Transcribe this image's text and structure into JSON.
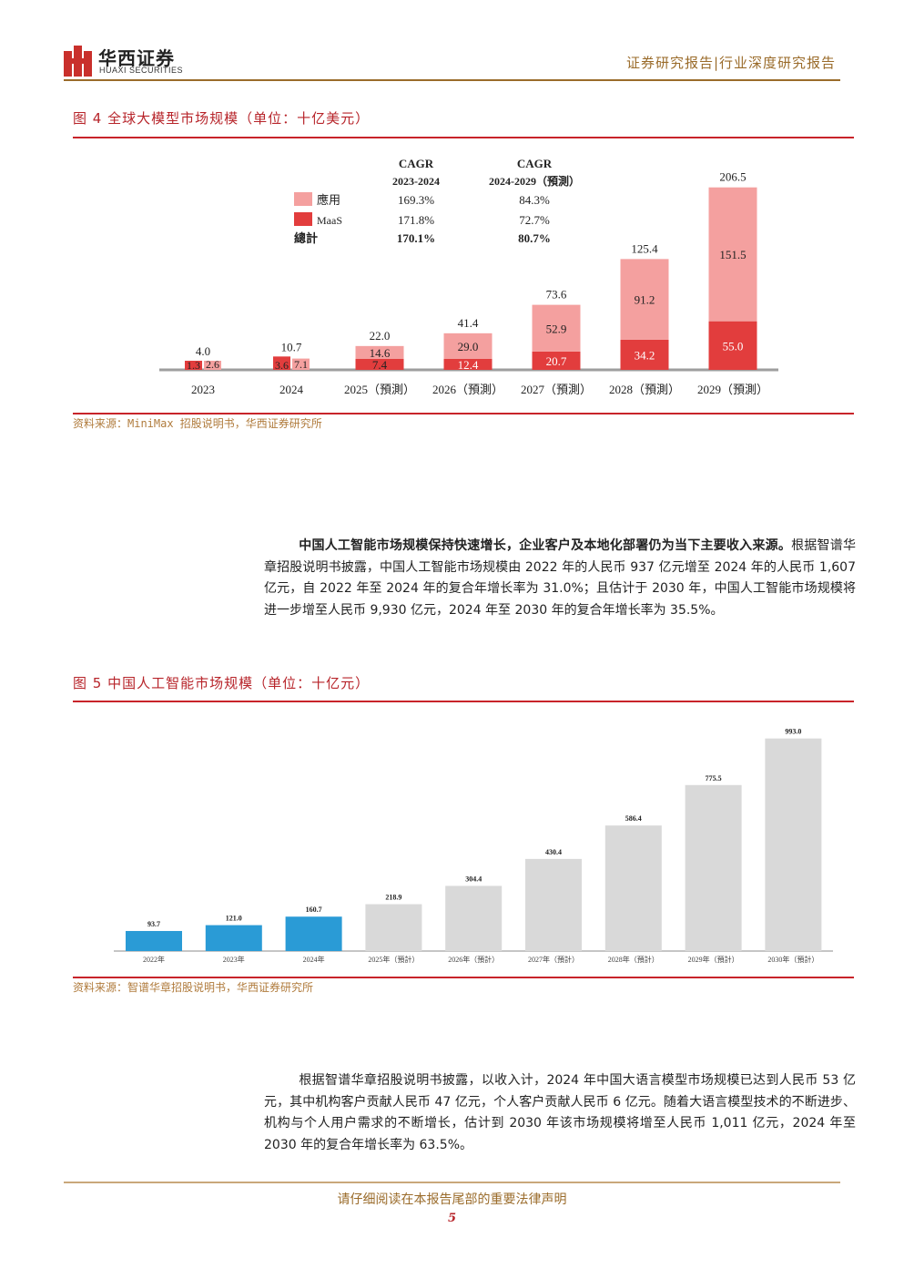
{
  "header": {
    "logo_cn": "华西证券",
    "logo_en": "HUAXI SECURITIES",
    "report_type": "证券研究报告|行业深度研究报告"
  },
  "figure4": {
    "title": "图 4   全球大模型市场规模（单位：十亿美元）",
    "source": "资料来源：MiniMax 招股说明书，华西证券研究所",
    "cagr_header_1": "CAGR",
    "cagr_period_1": "2023-2024",
    "cagr_header_2": "CAGR",
    "cagr_period_2": "2024-2029（預測）",
    "rows": [
      {
        "label": "應用",
        "c1": "169.3%",
        "c2": "84.3%",
        "swatch": "#f4a09f"
      },
      {
        "label": "MaaS",
        "c1": "171.8%",
        "c2": "72.7%",
        "swatch": "#e23d3d"
      },
      {
        "label": "總計",
        "c1": "170.1%",
        "c2": "80.7%",
        "swatch": ""
      }
    ]
  },
  "para1": {
    "bold": "中国人工智能市场规模保持快速增长，企业客户及本地化部署仍为当下主要收入来源。",
    "text": "根据智谱华章招股说明书披露，中国人工智能市场规模由 2022 年的人民币 937 亿元增至 2024 年的人民币 1,607 亿元，自 2022 年至 2024 年的复合年增长率为 31.0%；且估计于 2030 年，中国人工智能市场规模将进一步增至人民币 9,930 亿元，2024 年至 2030 年的复合年增长率为 35.5%。"
  },
  "figure5": {
    "title": "图 5   中国人工智能市场规模（单位：十亿元）",
    "source": "资料来源：智谱华章招股说明书，华西证券研究所"
  },
  "para2": {
    "text": "根据智谱华章招股说明书披露，以收入计，2024 年中国大语言模型市场规模已达到人民币 53 亿元，其中机构客户贡献人民币 47 亿元，个人客户贡献人民币 6 亿元。随着大语言模型技术的不断进步、机构与个人用户需求的不断增长，估计到 2030 年该市场规模将增至人民币 1,011 亿元，2024 年至 2030 年的复合年增长率为 63.5%。"
  },
  "footer": {
    "disclaimer": "请仔细阅读在本报告尾部的重要法律声明",
    "page": "5"
  },
  "chart_data": [
    {
      "type": "bar",
      "stacked": true,
      "categories": [
        "2023",
        "2024",
        "2025（預測）",
        "2026（預測）",
        "2027（預測）",
        "2028（預測）",
        "2029（預測）"
      ],
      "series": [
        {
          "name": "MaaS",
          "values": [
            1.3,
            3.6,
            7.4,
            12.4,
            20.7,
            34.2,
            55.0
          ],
          "color": "#e23d3d"
        },
        {
          "name": "應用",
          "values": [
            2.6,
            7.1,
            14.6,
            29.0,
            52.9,
            91.2,
            151.5
          ],
          "color": "#f4a09f"
        }
      ],
      "value_labels": {
        "MaaS": [
          "1.3",
          "3.6",
          "7.4",
          "12.4",
          "20.7",
          "34.2",
          "55.0"
        ],
        "應用": [
          "2.6",
          "7.1",
          "14.6",
          "29.0",
          "52.9",
          "91.2",
          "151.5"
        ]
      },
      "totals": [
        4.0,
        10.7,
        22.0,
        41.4,
        73.6,
        125.4,
        206.5
      ],
      "total_labels": [
        "4.0",
        "10.7",
        "22.0",
        "41.4",
        "73.6",
        "125.4",
        "206.5"
      ],
      "first_two_side_by_side": true,
      "ylim": [
        0,
        210
      ],
      "legend_position": "top-left"
    },
    {
      "type": "bar",
      "categories": [
        "2022年",
        "2023年",
        "2024年",
        "2025年（預計）",
        "2026年（預計）",
        "2027年（預計）",
        "2028年（預計）",
        "2029年（預計）",
        "2030年（預計）"
      ],
      "values": [
        93.7,
        121.0,
        160.7,
        218.9,
        304.4,
        430.4,
        586.4,
        775.5,
        993.0
      ],
      "value_labels": [
        "93.7",
        "121.0",
        "160.7",
        "218.9",
        "304.4",
        "430.4",
        "586.4",
        "775.5",
        "993.0"
      ],
      "colors": [
        "#2a9bd6",
        "#2a9bd6",
        "#2a9bd6",
        "#d9d9d9",
        "#d9d9d9",
        "#d9d9d9",
        "#d9d9d9",
        "#d9d9d9",
        "#d9d9d9"
      ],
      "ylim": [
        0,
        1000
      ]
    }
  ]
}
